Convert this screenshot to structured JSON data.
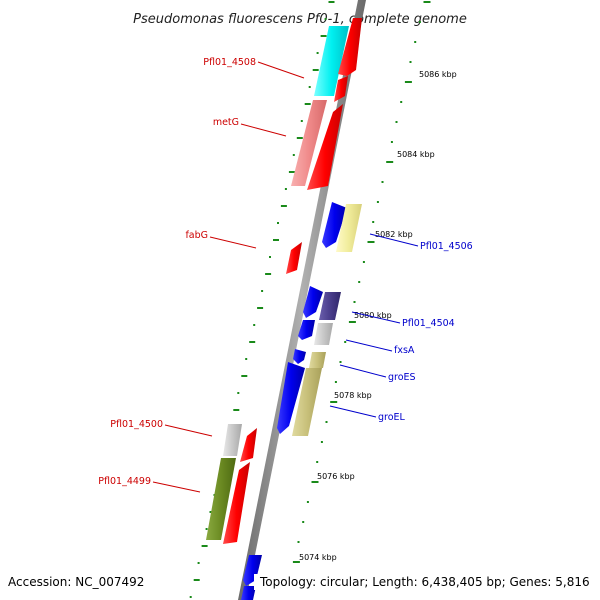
{
  "title": "Pseudomonas fluorescens Pf0-1, complete genome",
  "footer": {
    "accession": "Accession: NC_007492",
    "topology": "Topology: circular; Length: 6,438,405 bp; Genes: 5,816"
  },
  "colors": {
    "backbone": "#8a8a8a",
    "tick": "#1a8a1a",
    "left_label": "#cc0000",
    "right_label": "#0000cc"
  },
  "kbp_labels": [
    "5086 kbp",
    "5084 kbp",
    "5082 kbp",
    "5080 kbp",
    "5078 kbp",
    "5076 kbp",
    "5074 kbp"
  ],
  "left_labels": [
    "Pfl01_4508",
    "metG",
    "fabG",
    "Pfl01_4500",
    "Pfl01_4499"
  ],
  "right_labels": [
    "Pfl01_4506",
    "Pfl01_4504",
    "fxsA",
    "groES",
    "groEL"
  ],
  "features": [
    {
      "name": "cyan-feature",
      "color": "#00f0f0"
    },
    {
      "name": "pink-feature",
      "color": "#f08a8a"
    },
    {
      "name": "yellow-feature",
      "color": "#f0ec9a"
    },
    {
      "name": "navy-feature",
      "color": "#4a3e8c"
    },
    {
      "name": "light-gray-feature",
      "color": "#c8c8c8"
    },
    {
      "name": "olive-feature",
      "color": "#c8c07a"
    },
    {
      "name": "olive-green-feature",
      "color": "#6b8a22"
    },
    {
      "name": "red-gene",
      "color": "#ff0000"
    },
    {
      "name": "blue-gene",
      "color": "#0000ee"
    }
  ]
}
